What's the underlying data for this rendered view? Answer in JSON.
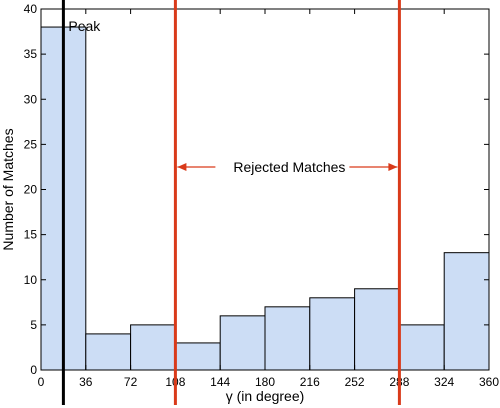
{
  "chart_data": {
    "type": "bar",
    "bins": [
      {
        "start": 0,
        "end": 36,
        "value": 38
      },
      {
        "start": 36,
        "end": 72,
        "value": 4
      },
      {
        "start": 72,
        "end": 108,
        "value": 5
      },
      {
        "start": 108,
        "end": 144,
        "value": 3
      },
      {
        "start": 144,
        "end": 180,
        "value": 6
      },
      {
        "start": 180,
        "end": 216,
        "value": 7
      },
      {
        "start": 216,
        "end": 252,
        "value": 8
      },
      {
        "start": 252,
        "end": 288,
        "value": 9
      },
      {
        "start": 288,
        "end": 324,
        "value": 5
      },
      {
        "start": 324,
        "end": 360,
        "value": 13
      }
    ],
    "xlabel": "γ (in degree)",
    "ylabel": "Number of Matches",
    "xlim": [
      0,
      360
    ],
    "ylim": [
      0,
      40
    ],
    "xticks": [
      0,
      36,
      72,
      108,
      144,
      180,
      216,
      252,
      288,
      324,
      360
    ],
    "yticks": [
      0,
      5,
      10,
      15,
      20,
      25,
      30,
      35,
      40
    ],
    "grid": false,
    "bar_color": "#ccddf5",
    "bar_edge_color": "#000000",
    "peak_line": {
      "x": 18,
      "label": "Peak",
      "color": "#000000"
    },
    "rejected_region": {
      "x_start": 108,
      "x_end": 288,
      "label": "Rejected Matches",
      "color": "#d93a1a"
    }
  }
}
